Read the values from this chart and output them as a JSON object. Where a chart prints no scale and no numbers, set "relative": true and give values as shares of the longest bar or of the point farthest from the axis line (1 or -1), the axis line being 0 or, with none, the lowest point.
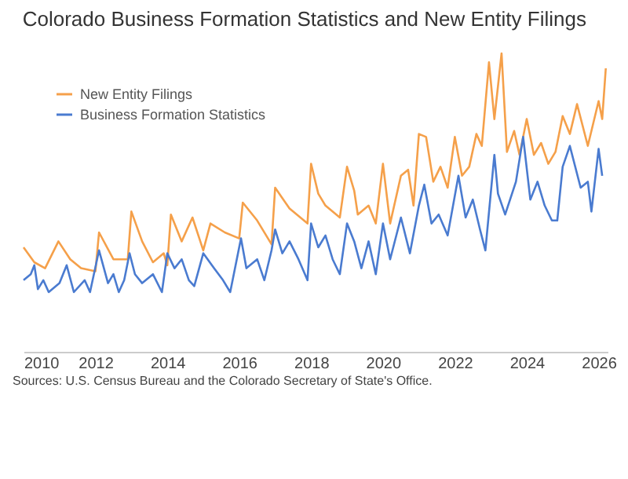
{
  "chart_data": {
    "type": "line",
    "title": "Colorado Business Formation Statistics and New Entity Filings",
    "relative": true,
    "xlim": [
      2010,
      2026.25
    ],
    "xticks": [
      2010,
      2012,
      2014,
      2016,
      2018,
      2020,
      2022,
      2024,
      2026
    ],
    "legend": "top left",
    "annotations": [
      "Sources: U.S. Census Bureau and the Colorado Secretary of State's Office."
    ],
    "series": [
      {
        "name": "New Entity Filings",
        "color": "#f5a04a",
        "x": [
          2010.0,
          2010.3,
          2010.6,
          2010.97,
          2011.3,
          2011.6,
          2012.0,
          2012.1,
          2012.5,
          2012.9,
          2013.0,
          2013.3,
          2013.6,
          2013.9,
          2014.0,
          2014.1,
          2014.4,
          2014.7,
          2015.0,
          2015.2,
          2015.6,
          2016.0,
          2016.1,
          2016.5,
          2016.9,
          2017.0,
          2017.4,
          2017.9,
          2018.0,
          2018.2,
          2018.4,
          2018.8,
          2019.0,
          2019.2,
          2019.3,
          2019.6,
          2019.8,
          2020.0,
          2020.2,
          2020.5,
          2020.7,
          2020.85,
          2021.0,
          2021.2,
          2021.4,
          2021.6,
          2021.8,
          2022.0,
          2022.2,
          2022.4,
          2022.6,
          2022.75,
          2022.95,
          2023.1,
          2023.3,
          2023.45,
          2023.65,
          2023.8,
          2024.0,
          2024.2,
          2024.4,
          2024.6,
          2024.8,
          2025.0,
          2025.2,
          2025.4,
          2025.7,
          2026.0,
          2026.1,
          2026.2
        ],
        "values": [
          0.35,
          0.3,
          0.28,
          0.37,
          0.31,
          0.28,
          0.27,
          0.4,
          0.31,
          0.31,
          0.47,
          0.37,
          0.3,
          0.33,
          0.29,
          0.46,
          0.37,
          0.45,
          0.34,
          0.43,
          0.4,
          0.38,
          0.5,
          0.44,
          0.36,
          0.55,
          0.48,
          0.43,
          0.63,
          0.53,
          0.49,
          0.45,
          0.62,
          0.54,
          0.46,
          0.49,
          0.43,
          0.63,
          0.43,
          0.59,
          0.61,
          0.49,
          0.73,
          0.72,
          0.57,
          0.62,
          0.55,
          0.72,
          0.59,
          0.62,
          0.73,
          0.69,
          0.97,
          0.78,
          1,
          0.67,
          0.74,
          0.66,
          0.78,
          0.66,
          0.7,
          0.63,
          0.67,
          0.79,
          0.73,
          0.83,
          0.69,
          0.84,
          0.78,
          0.95
        ]
      },
      {
        "name": "Business Formation Statistics",
        "color": "#4a7bd0",
        "x": [
          2010.0,
          2010.2,
          2010.3,
          2010.4,
          2010.55,
          2010.7,
          2011.0,
          2011.2,
          2011.4,
          2011.7,
          2011.85,
          2012.1,
          2012.35,
          2012.5,
          2012.65,
          2012.8,
          2012.95,
          2013.1,
          2013.3,
          2013.6,
          2013.85,
          2014.0,
          2014.2,
          2014.4,
          2014.6,
          2014.75,
          2015.0,
          2015.3,
          2015.55,
          2015.75,
          2016.05,
          2016.2,
          2016.5,
          2016.7,
          2016.9,
          2017.0,
          2017.2,
          2017.4,
          2017.65,
          2017.9,
          2018.0,
          2018.2,
          2018.4,
          2018.6,
          2018.8,
          2019.0,
          2019.2,
          2019.4,
          2019.6,
          2019.8,
          2020.0,
          2020.2,
          2020.5,
          2020.75,
          2021.0,
          2021.15,
          2021.35,
          2021.55,
          2021.8,
          2022.1,
          2022.3,
          2022.5,
          2022.7,
          2022.85,
          2023.1,
          2023.2,
          2023.4,
          2023.7,
          2023.9,
          2024.1,
          2024.3,
          2024.5,
          2024.7,
          2024.85,
          2025.0,
          2025.2,
          2025.5,
          2025.7,
          2025.8,
          2026.0,
          2026.1
        ],
        "values": [
          0.24,
          0.26,
          0.29,
          0.21,
          0.24,
          0.2,
          0.23,
          0.29,
          0.2,
          0.24,
          0.2,
          0.34,
          0.23,
          0.26,
          0.2,
          0.24,
          0.33,
          0.26,
          0.23,
          0.26,
          0.2,
          0.33,
          0.28,
          0.31,
          0.24,
          0.22,
          0.33,
          0.28,
          0.24,
          0.2,
          0.38,
          0.28,
          0.31,
          0.24,
          0.34,
          0.41,
          0.33,
          0.37,
          0.31,
          0.24,
          0.43,
          0.35,
          0.39,
          0.31,
          0.26,
          0.43,
          0.37,
          0.28,
          0.37,
          0.26,
          0.43,
          0.31,
          0.45,
          0.33,
          0.49,
          0.56,
          0.43,
          0.46,
          0.39,
          0.59,
          0.45,
          0.51,
          0.41,
          0.34,
          0.66,
          0.53,
          0.46,
          0.57,
          0.72,
          0.51,
          0.57,
          0.49,
          0.44,
          0.44,
          0.62,
          0.69,
          0.55,
          0.57,
          0.47,
          0.68,
          0.59
        ]
      }
    ]
  }
}
